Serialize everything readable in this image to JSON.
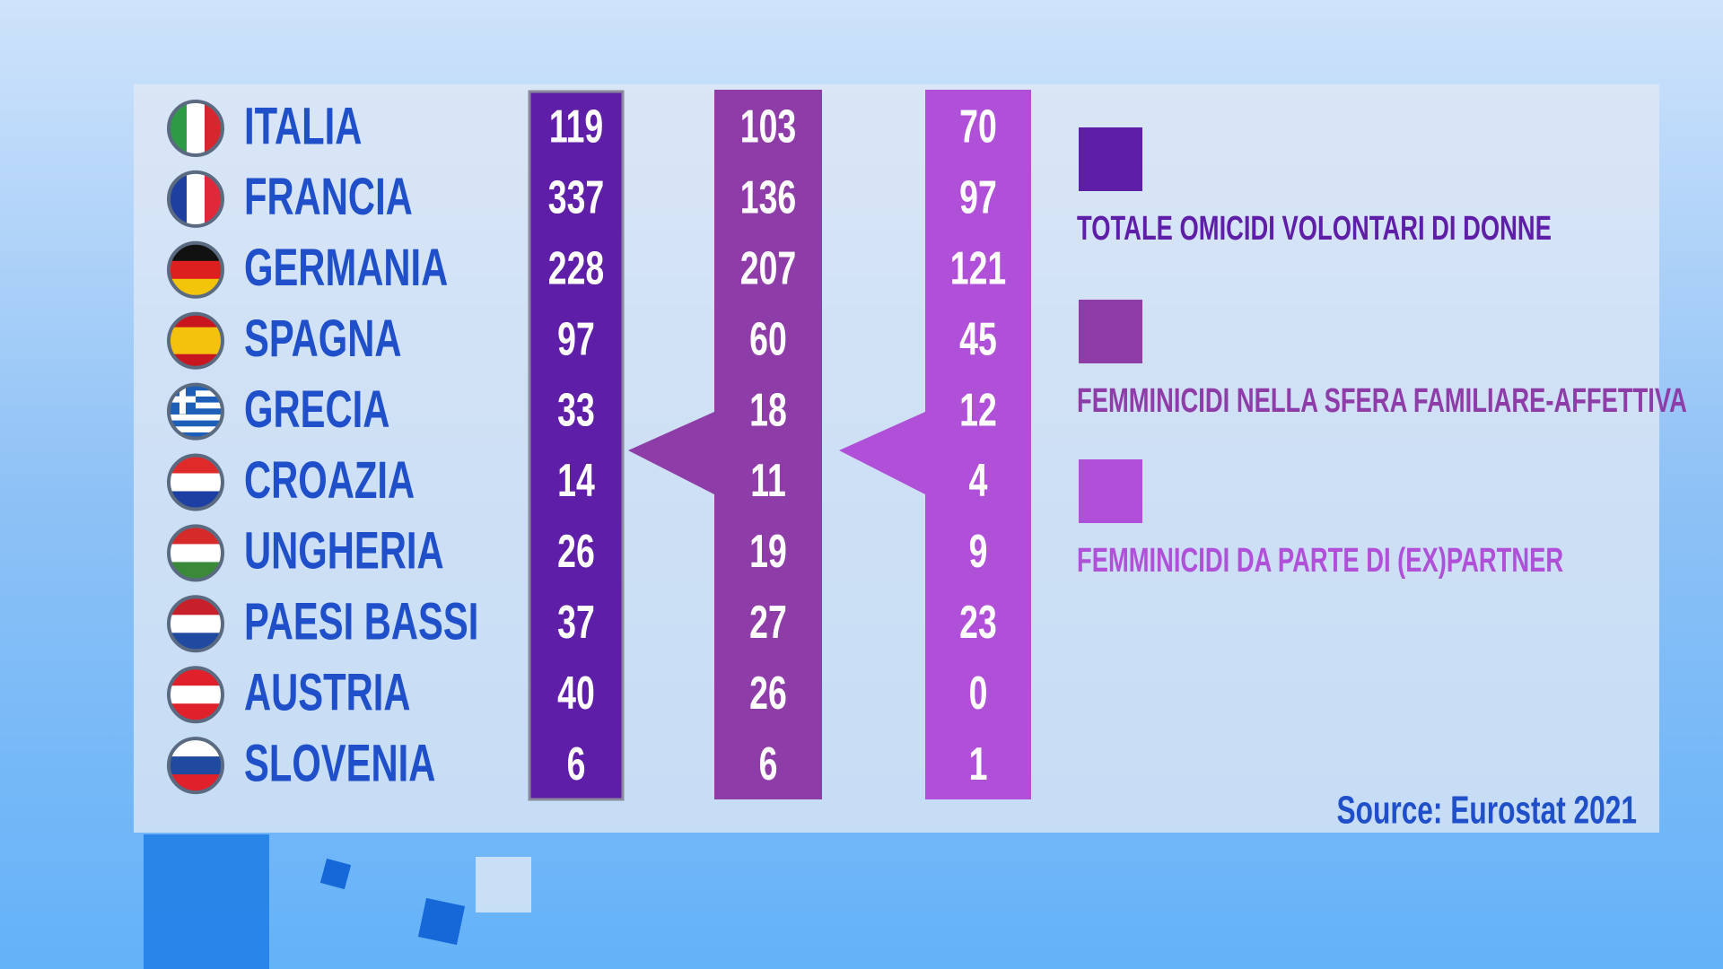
{
  "rows": [
    {
      "country": "ITALIA",
      "values": [
        "119",
        "103",
        "70"
      ]
    },
    {
      "country": "FRANCIA",
      "values": [
        "337",
        "136",
        "97"
      ]
    },
    {
      "country": "GERMANIA",
      "values": [
        "228",
        "207",
        "121"
      ]
    },
    {
      "country": "SPAGNA",
      "values": [
        "97",
        "60",
        "45"
      ]
    },
    {
      "country": "GRECIA",
      "values": [
        "33",
        "18",
        "12"
      ]
    },
    {
      "country": "CROAZIA",
      "values": [
        "14",
        "11",
        "4"
      ]
    },
    {
      "country": "UNGHERIA",
      "values": [
        "26",
        "19",
        "9"
      ]
    },
    {
      "country": "PAESI BASSI",
      "values": [
        "37",
        "27",
        "23"
      ]
    },
    {
      "country": "AUSTRIA",
      "values": [
        "40",
        "26",
        "0"
      ]
    },
    {
      "country": "SLOVENIA",
      "values": [
        "6",
        "6",
        "1"
      ]
    }
  ],
  "legend": [
    "TOTALE OMICIDI VOLONTARI DI DONNE",
    "FEMMINICIDI NELLA SFERA FAMILIARE-AFFETTIVA",
    "FEMMINICIDI DA PARTE DI (EX)PARTNER"
  ],
  "source": "Source: Eurostat 2021"
}
